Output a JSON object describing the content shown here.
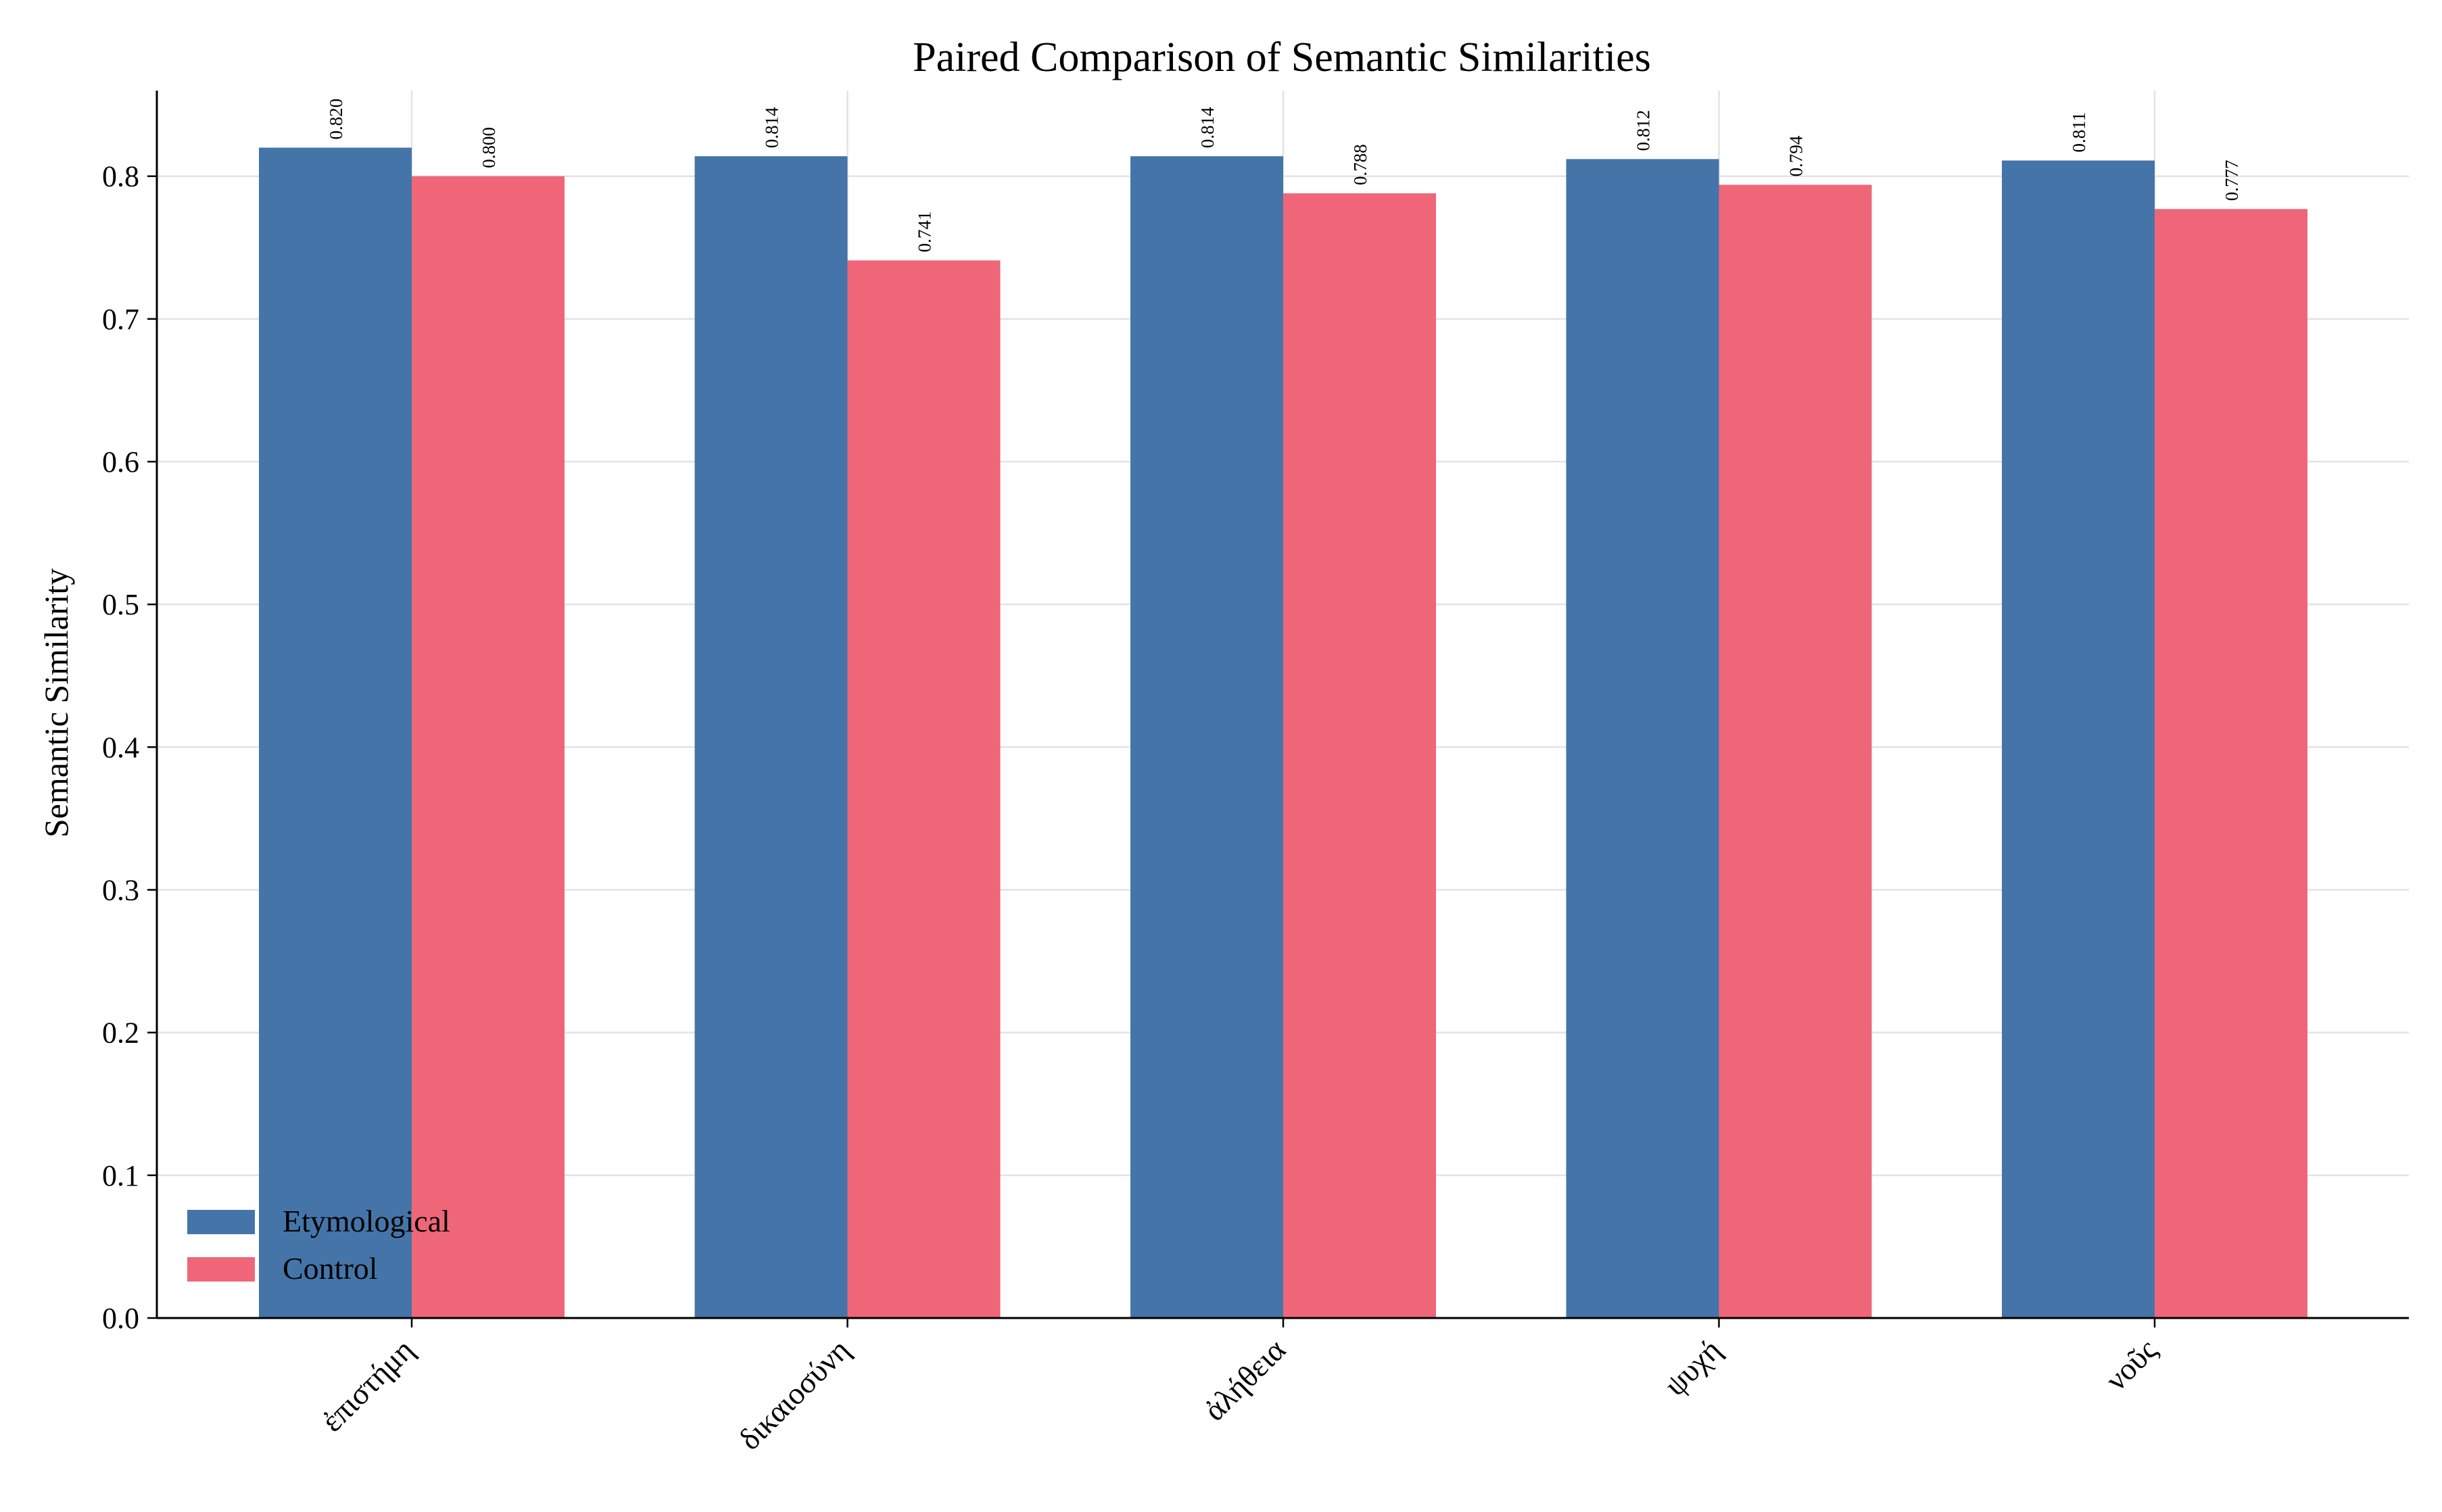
{
  "chart_data": {
    "type": "bar",
    "title": "Paired Comparison of Semantic Similarities",
    "xlabel": "",
    "ylabel": "Semantic Similarity",
    "categories": [
      "ἐπιστήμη",
      "δικαιοσύνη",
      "ἀλήθεια",
      "ψυχή",
      "νοῦς"
    ],
    "series": [
      {
        "name": "Etymological",
        "color": "#4575a8",
        "values": [
          0.82,
          0.814,
          0.814,
          0.812,
          0.811
        ]
      },
      {
        "name": "Control",
        "color": "#ef6678",
        "values": [
          0.8,
          0.741,
          0.788,
          0.794,
          0.777
        ]
      }
    ],
    "value_labels": [
      [
        "0.820",
        "0.814",
        "0.814",
        "0.812",
        "0.811"
      ],
      [
        "0.800",
        "0.741",
        "0.788",
        "0.794",
        "0.777"
      ]
    ],
    "ylim": [
      0,
      0.86
    ],
    "yticks": [
      "0.0",
      "0.1",
      "0.2",
      "0.3",
      "0.4",
      "0.5",
      "0.6",
      "0.7",
      "0.8"
    ],
    "grid": true,
    "legend_position": "lower-left"
  }
}
